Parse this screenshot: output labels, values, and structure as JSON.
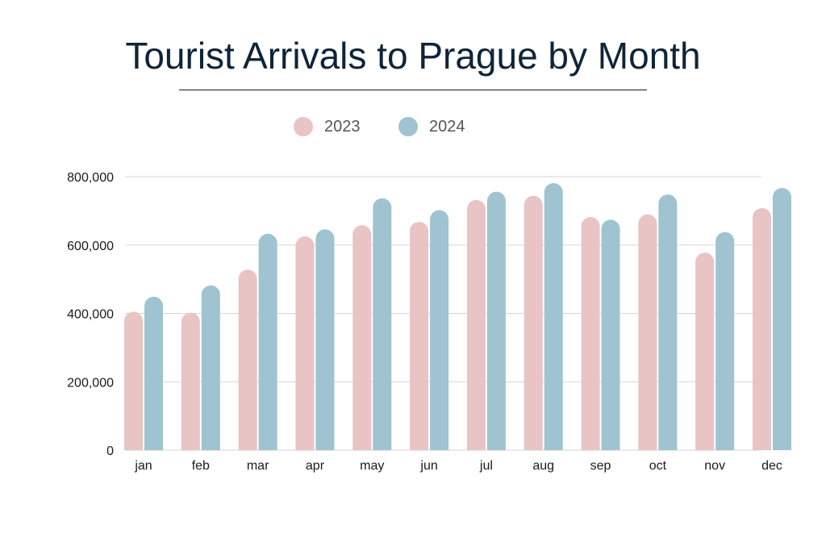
{
  "chart_data": {
    "type": "bar",
    "title": "Tourist Arrivals to Prague by Month",
    "xlabel": "",
    "ylabel": "",
    "categories": [
      "jan",
      "feb",
      "mar",
      "apr",
      "may",
      "jun",
      "jul",
      "aug",
      "sep",
      "oct",
      "nov",
      "dec"
    ],
    "series": [
      {
        "name": "2023",
        "color": "#e8c4c4",
        "values": [
          405000,
          402000,
          528000,
          625000,
          658000,
          668000,
          732000,
          744000,
          682000,
          690000,
          578000,
          708000
        ]
      },
      {
        "name": "2024",
        "color": "#9fc3d1",
        "values": [
          449000,
          482000,
          633000,
          646000,
          737000,
          702000,
          756000,
          781000,
          674000,
          748000,
          638000,
          767000
        ]
      }
    ],
    "ylim": [
      0,
      800000
    ],
    "yticks": [
      0,
      200000,
      400000,
      600000,
      800000
    ],
    "ytick_labels": [
      "0",
      "200,000",
      "400,000",
      "600,000",
      "800,000"
    ],
    "grid": true,
    "legend_position": "top-center"
  }
}
